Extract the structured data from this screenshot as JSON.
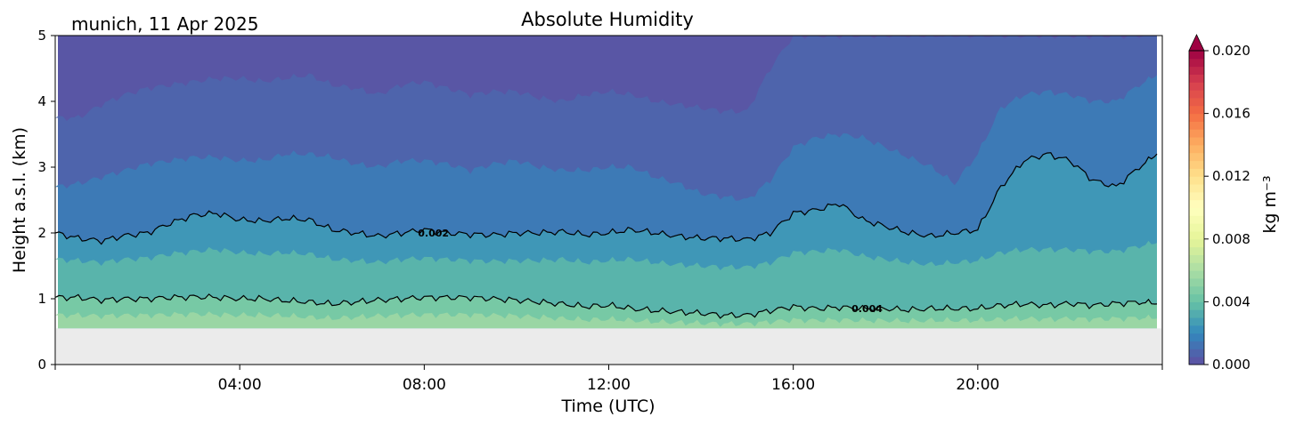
{
  "header": {
    "location_date": "munich, 11 Apr 2025"
  },
  "chart_data": {
    "type": "heatmap",
    "title": "Absolute Humidity",
    "xlabel": "Time (UTC)",
    "ylabel": "Height a.s.l. (km)",
    "x_unit": "hours UTC",
    "xlim": [
      0,
      24
    ],
    "ylim": [
      0,
      5
    ],
    "x_ticks": [
      0,
      4,
      8,
      12,
      16,
      20,
      24
    ],
    "x_tick_labels": [
      "04:00",
      "08:00",
      "12:00",
      "16:00",
      "20:00"
    ],
    "x_tick_label_values": [
      4,
      8,
      12,
      16,
      20
    ],
    "y_ticks": [
      0,
      1,
      2,
      3,
      4,
      5
    ],
    "y_tick_labels": [
      "0",
      "1",
      "2",
      "3",
      "4",
      "5"
    ],
    "no_data_below_km": 0.55,
    "no_data_color": "#ebebeb",
    "colorbar": {
      "label": "kg m⁻³",
      "range": [
        0.0,
        0.02
      ],
      "ticks": [
        "0.000",
        "0.004",
        "0.008",
        "0.012",
        "0.016",
        "0.020"
      ],
      "tick_values": [
        0.0,
        0.004,
        0.008,
        0.012,
        0.016,
        0.02
      ],
      "colormap": "Spectral_r",
      "extend": "max",
      "colors": [
        "#5e4fa2",
        "#3288bd",
        "#66c2a5",
        "#abdda4",
        "#e6f598",
        "#ffffbf",
        "#fee08b",
        "#fdae61",
        "#f46d43",
        "#d53e4f",
        "#9e0142"
      ]
    },
    "contour_levels": [
      {
        "value": 0.002,
        "label": "0.002",
        "label_at_hour": 8.2
      },
      {
        "value": 0.004,
        "label": "0.004",
        "label_at_hour": 17.6
      }
    ],
    "time_hours": [
      0,
      0.5,
      1,
      1.5,
      2,
      2.5,
      3,
      3.5,
      4,
      4.5,
      5,
      5.5,
      6,
      6.5,
      7,
      7.5,
      8,
      8.5,
      9,
      9.5,
      10,
      10.5,
      11,
      11.5,
      12,
      12.5,
      13,
      13.5,
      14,
      14.5,
      15,
      15.5,
      16,
      16.5,
      17,
      17.5,
      18,
      18.5,
      19,
      19.5,
      20,
      20.5,
      21,
      21.5,
      22,
      22.5,
      23,
      23.5,
      23.9
    ],
    "contour_0_002_km": [
      2.0,
      1.92,
      1.88,
      1.96,
      2.0,
      2.15,
      2.27,
      2.3,
      2.2,
      2.18,
      2.22,
      2.2,
      2.05,
      2.0,
      1.95,
      2.0,
      2.05,
      2.0,
      1.98,
      1.97,
      2.0,
      2.0,
      2.02,
      1.97,
      2.0,
      2.05,
      2.0,
      1.95,
      1.92,
      1.92,
      1.9,
      2.0,
      2.3,
      2.35,
      2.45,
      2.2,
      2.1,
      2.0,
      1.95,
      2.0,
      2.05,
      2.7,
      3.1,
      3.2,
      3.1,
      2.8,
      2.7,
      3.0,
      3.2
    ],
    "contour_0_004_km": [
      1.02,
      1.02,
      0.98,
      1.0,
      1.0,
      1.02,
      1.03,
      1.02,
      1.0,
      1.0,
      0.97,
      0.95,
      0.92,
      0.95,
      0.98,
      1.0,
      1.02,
      1.02,
      1.02,
      1.0,
      0.98,
      0.95,
      0.92,
      0.88,
      0.9,
      0.85,
      0.82,
      0.8,
      0.78,
      0.75,
      0.75,
      0.82,
      0.88,
      0.85,
      0.87,
      0.85,
      0.85,
      0.83,
      0.85,
      0.85,
      0.85,
      0.9,
      0.92,
      0.9,
      0.93,
      0.9,
      0.93,
      0.95,
      0.92
    ],
    "fill_band_boundaries_km": {
      "0.0005": [
        3.75,
        3.75,
        3.95,
        4.1,
        4.2,
        4.25,
        4.3,
        4.35,
        4.35,
        4.3,
        4.35,
        4.4,
        4.25,
        4.2,
        4.1,
        4.25,
        4.3,
        4.2,
        4.1,
        4.15,
        4.15,
        4.05,
        4.0,
        4.1,
        4.15,
        4.1,
        4.0,
        3.95,
        3.9,
        3.85,
        3.85,
        4.5,
        5.0,
        5.0,
        5.0,
        5.0,
        5.0,
        5.0,
        5.0,
        5.0,
        5.0,
        5.0,
        5.0,
        5.0,
        5.0,
        5.0,
        5.0,
        5.0,
        5.0
      ],
      "0.001": [
        2.7,
        2.75,
        2.85,
        2.95,
        3.05,
        3.1,
        3.15,
        3.15,
        3.1,
        3.1,
        3.2,
        3.2,
        3.15,
        3.05,
        3.0,
        3.1,
        3.1,
        3.05,
        2.95,
        3.05,
        3.1,
        3.0,
        2.95,
        2.95,
        3.0,
        3.0,
        2.85,
        2.75,
        2.6,
        2.55,
        2.5,
        2.8,
        3.3,
        3.45,
        3.5,
        3.45,
        3.3,
        3.15,
        3.0,
        2.75,
        3.2,
        3.9,
        4.1,
        4.15,
        4.1,
        4.0,
        4.0,
        4.25,
        4.4
      ],
      "0.002": [
        2.0,
        1.92,
        1.88,
        1.96,
        2.0,
        2.15,
        2.27,
        2.3,
        2.2,
        2.18,
        2.22,
        2.2,
        2.05,
        2.0,
        1.95,
        2.0,
        2.05,
        2.0,
        1.98,
        1.97,
        2.0,
        2.0,
        2.02,
        1.97,
        2.0,
        2.05,
        2.0,
        1.95,
        1.92,
        1.92,
        1.9,
        2.0,
        2.3,
        2.35,
        2.45,
        2.2,
        2.1,
        2.0,
        1.95,
        2.0,
        2.05,
        2.7,
        3.1,
        3.2,
        3.1,
        2.8,
        2.7,
        3.0,
        3.2
      ],
      "0.003": [
        1.6,
        1.58,
        1.55,
        1.6,
        1.62,
        1.68,
        1.72,
        1.75,
        1.7,
        1.68,
        1.7,
        1.68,
        1.6,
        1.58,
        1.55,
        1.6,
        1.62,
        1.6,
        1.58,
        1.57,
        1.58,
        1.58,
        1.6,
        1.55,
        1.58,
        1.6,
        1.55,
        1.52,
        1.5,
        1.48,
        1.48,
        1.55,
        1.7,
        1.72,
        1.75,
        1.65,
        1.6,
        1.55,
        1.52,
        1.55,
        1.58,
        1.7,
        1.75,
        1.75,
        1.75,
        1.72,
        1.72,
        1.8,
        1.85
      ],
      "0.004": [
        1.02,
        1.02,
        0.98,
        1.0,
        1.0,
        1.02,
        1.03,
        1.02,
        1.0,
        1.0,
        0.97,
        0.95,
        0.92,
        0.95,
        0.98,
        1.0,
        1.02,
        1.02,
        1.02,
        1.0,
        0.98,
        0.95,
        0.92,
        0.88,
        0.9,
        0.85,
        0.82,
        0.8,
        0.78,
        0.75,
        0.75,
        0.82,
        0.88,
        0.85,
        0.87,
        0.85,
        0.85,
        0.83,
        0.85,
        0.85,
        0.85,
        0.9,
        0.92,
        0.9,
        0.93,
        0.9,
        0.93,
        0.95,
        0.92
      ],
      "0.005": [
        0.75,
        0.75,
        0.74,
        0.75,
        0.75,
        0.76,
        0.77,
        0.76,
        0.75,
        0.75,
        0.74,
        0.72,
        0.7,
        0.72,
        0.74,
        0.75,
        0.76,
        0.76,
        0.76,
        0.75,
        0.74,
        0.72,
        0.7,
        0.68,
        0.69,
        0.67,
        0.65,
        0.64,
        0.63,
        0.62,
        0.62,
        0.65,
        0.68,
        0.67,
        0.68,
        0.67,
        0.67,
        0.66,
        0.67,
        0.67,
        0.67,
        0.69,
        0.7,
        0.69,
        0.7,
        0.69,
        0.7,
        0.71,
        0.7
      ]
    }
  }
}
